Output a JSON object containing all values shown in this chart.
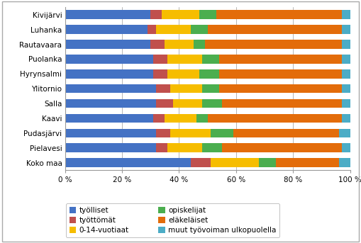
{
  "categories": [
    "Kivijärvi",
    "Luhanka",
    "Rautavaara",
    "Puolanka",
    "Hyrynsalmi",
    "Ylitornio",
    "Salla",
    "Kaavi",
    "Pudasjärvi",
    "Pielavesi",
    "Koko maa"
  ],
  "series": {
    "työlliset": [
      30,
      29,
      30,
      31,
      31,
      32,
      32,
      31,
      32,
      32,
      44
    ],
    "työttömät": [
      4,
      3,
      5,
      5,
      5,
      5,
      6,
      4,
      5,
      4,
      7
    ],
    "0-14-vuotiaat": [
      13,
      12,
      10,
      12,
      11,
      11,
      10,
      11,
      14,
      12,
      17
    ],
    "opiskelijat": [
      6,
      6,
      4,
      6,
      7,
      6,
      7,
      4,
      8,
      7,
      6
    ],
    "eläkeläiset": [
      44,
      47,
      48,
      43,
      43,
      43,
      42,
      47,
      37,
      42,
      22
    ],
    "muut": [
      3,
      3,
      3,
      3,
      3,
      3,
      3,
      3,
      4,
      3,
      4
    ]
  },
  "colors": {
    "työlliset": "#4472C4",
    "työttömät": "#C0504D",
    "0-14-vuotiaat": "#F6BD00",
    "opiskelijat": "#4BAE4F",
    "eläkeläiset": "#E36C0A",
    "muut": "#4BACC6"
  },
  "legend_labels": {
    "työlliset": "työlliset",
    "työttömät": "työttömät",
    "0-14-vuotiaat": "0-14-vuotiaat",
    "opiskelijat": "opiskelijat",
    "eläkeläiset": "eläkeläiset",
    "muut": "muut työvoiman ulkopuolella"
  },
  "xlim": [
    0,
    100
  ],
  "xticks": [
    0,
    20,
    40,
    60,
    80,
    100
  ],
  "xtick_labels": [
    "0 %",
    "20 %",
    "40 %",
    "60 %",
    "80 %",
    "100 %"
  ],
  "figsize": [
    5.09,
    3.43
  ],
  "dpi": 100,
  "bar_height": 0.6,
  "background_color": "#ffffff",
  "font_size": 7.5
}
